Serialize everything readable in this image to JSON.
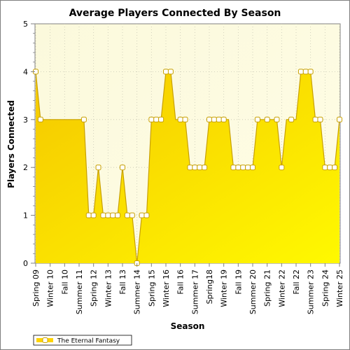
{
  "chart_data": {
    "type": "area",
    "title": "Average Players Connected By Season",
    "xlabel": "Season",
    "ylabel": "Players Connected",
    "ylim": [
      0,
      5
    ],
    "yticks": [
      "0",
      "1",
      "2",
      "3",
      "4",
      "5"
    ],
    "x_tick_labels": [
      "Spring 09",
      "Winter 10",
      "Fall 10",
      "Summer 11",
      "Spring 12",
      "Winter 13",
      "Fall 13",
      "Summer 14",
      "Spring 15",
      "Winter 16",
      "Fall 16",
      "Summer 17",
      "Spring18",
      "Winter 19",
      "Fall 19",
      "Summer 20",
      "Spring 21",
      "Winter 22",
      "Fall 22",
      "Summer 23",
      "Spring 24",
      "Winter 25"
    ],
    "grid": true,
    "legend_position": "bottom-left",
    "series": [
      {
        "name": "The Eternal Fantasy",
        "color": "#ffd400",
        "values": [
          4,
          3,
          3,
          3,
          3,
          3,
          3,
          3,
          3,
          3,
          3,
          1,
          1,
          2,
          1,
          1,
          1,
          1,
          2,
          1,
          1,
          0,
          1,
          1,
          3,
          3,
          3,
          4,
          4,
          3,
          3,
          3,
          2,
          2,
          2,
          2,
          3,
          3,
          3,
          3,
          3,
          2,
          2,
          2,
          2,
          2,
          3,
          3,
          3,
          3,
          3,
          2,
          3,
          3,
          3,
          4,
          4,
          4,
          3,
          3,
          2,
          2,
          2,
          3
        ],
        "markers": [
          0,
          1,
          10,
          11,
          12,
          13,
          14,
          15,
          16,
          17,
          18,
          19,
          20,
          21,
          22,
          23,
          24,
          25,
          26,
          27,
          28,
          30,
          31,
          32,
          33,
          34,
          35,
          36,
          37,
          38,
          39,
          41,
          42,
          43,
          44,
          45,
          46,
          48,
          50,
          51,
          53,
          55,
          56,
          57,
          58,
          59,
          60,
          61,
          62,
          63
        ]
      }
    ]
  }
}
